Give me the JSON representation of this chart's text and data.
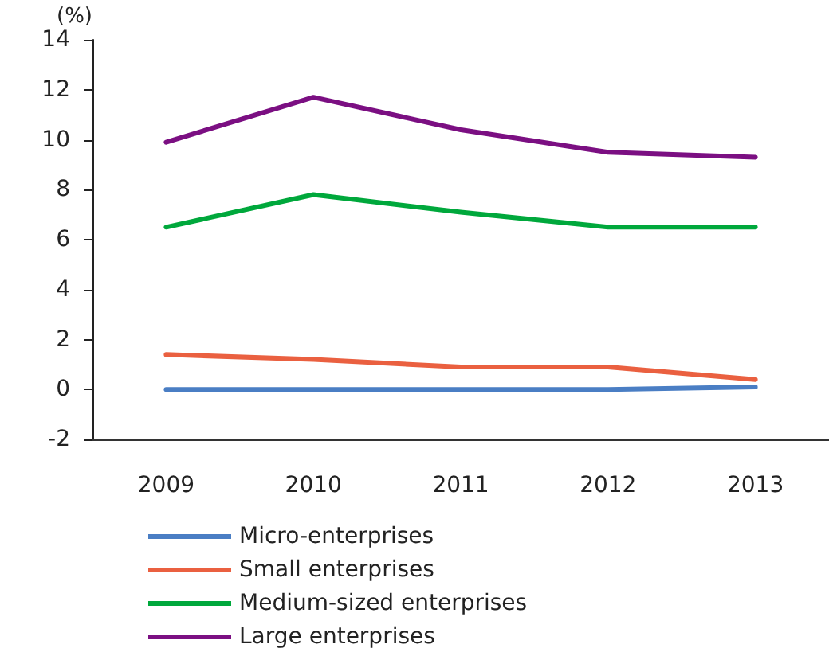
{
  "chart_data": {
    "type": "line",
    "ylabel": "(%)",
    "categories": [
      "2009",
      "2010",
      "2011",
      "2012",
      "2013"
    ],
    "series": [
      {
        "name": "Micro-enterprises",
        "color": "#4a7ec4",
        "values": [
          0,
          0,
          0,
          0,
          0.1
        ]
      },
      {
        "name": "Small enterprises",
        "color": "#ea6040",
        "values": [
          1.4,
          1.2,
          0.9,
          0.9,
          0.4
        ]
      },
      {
        "name": "Medium-sized enterprises",
        "color": "#00a83c",
        "values": [
          6.5,
          7.8,
          7.1,
          6.5,
          6.5
        ]
      },
      {
        "name": "Large enterprises",
        "color": "#7b0f82",
        "values": [
          9.9,
          11.7,
          10.4,
          9.5,
          9.3
        ]
      }
    ],
    "ylim": [
      -2,
      14
    ],
    "yticks": [
      -2,
      0,
      2,
      4,
      6,
      8,
      10,
      12,
      14
    ],
    "grid": false,
    "legend": "bottom",
    "marker": "none",
    "line_style": "solid"
  }
}
